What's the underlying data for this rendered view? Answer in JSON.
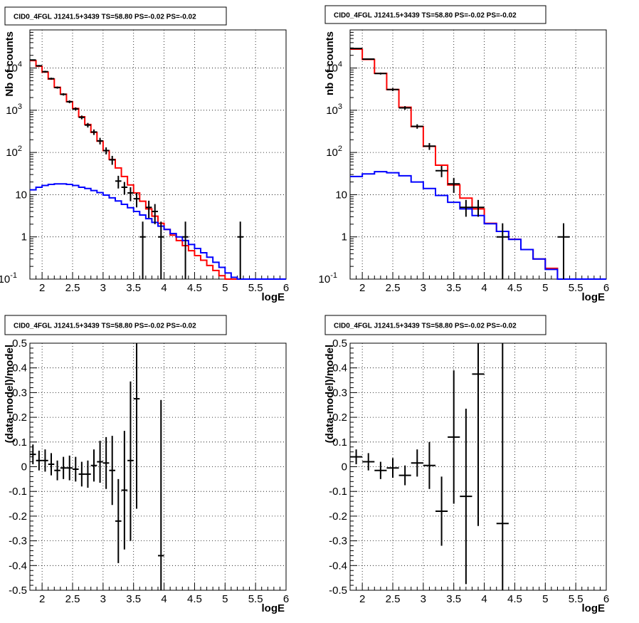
{
  "title": "CID0_4FGL J1241.5+3439 TS=58.80 PS=-0.02 PS=-0.02",
  "colors": {
    "model_total": "#ff0000",
    "model_bkg": "#0000ff",
    "data": "#000000",
    "grid": "#000000"
  },
  "chart_data": [
    {
      "type": "step-histogram",
      "panel": "top-left",
      "title": "CID0_4FGL J1241.5+3439 TS=58.80 PS=-0.02 PS=-0.02",
      "xlabel": "logE",
      "ylabel": "Nb of counts",
      "xlim": [
        1.8,
        6
      ],
      "ylim": [
        0.1,
        80000
      ],
      "yscale": "log",
      "grid": true,
      "xticks": [
        "2",
        "2.5",
        "3",
        "3.5",
        "4",
        "4.5",
        "5",
        "5.5",
        "6"
      ],
      "xtick_values": [
        2,
        2.5,
        3,
        3.5,
        4,
        4.5,
        5,
        5.5,
        6
      ],
      "yticks": [
        "10⁻¹",
        "1",
        "10",
        "10²",
        "10³",
        "10⁴"
      ],
      "ytick_values": [
        0.1,
        1,
        10,
        100,
        1000,
        10000
      ],
      "bin_edges": [
        1.8,
        1.9,
        2.0,
        2.1,
        2.2,
        2.3,
        2.4,
        2.5,
        2.6,
        2.7,
        2.8,
        2.9,
        3.0,
        3.1,
        3.2,
        3.3,
        3.4,
        3.5,
        3.6,
        3.7,
        3.8,
        3.9,
        4.0,
        4.1,
        4.2,
        4.3,
        4.4,
        4.5,
        4.6,
        4.7,
        4.8,
        4.9,
        5.0,
        5.1,
        5.2,
        5.3,
        5.4,
        5.5,
        5.6,
        5.7,
        5.8,
        5.9,
        6.0
      ],
      "series": [
        {
          "values": [
            15000,
            11000,
            8000,
            5500,
            3500,
            2400,
            1600,
            1100,
            700,
            460,
            300,
            185,
            110,
            68,
            43,
            27,
            17,
            11,
            7,
            4.6,
            3.1,
            2.1,
            1.5,
            1.1,
            0.82,
            0.62,
            0.47,
            0.36,
            0.28,
            0.21,
            0.16,
            0.12,
            0.1,
            0.09,
            0.09,
            0.09,
            0.09,
            0.09,
            0.09,
            0.09,
            0.09,
            0.09
          ],
          "color": "#ff0000"
        },
        {
          "values": [
            13,
            15,
            16.5,
            17.5,
            18,
            18,
            17.5,
            16.5,
            15,
            14,
            12.5,
            11.2,
            9.8,
            8.4,
            7.1,
            5.9,
            4.9,
            4.0,
            3.3,
            2.7,
            2.2,
            1.8,
            1.5,
            1.2,
            1.0,
            0.82,
            0.66,
            0.53,
            0.42,
            0.33,
            0.25,
            0.19,
            0.14,
            0.11,
            0.09,
            0.09,
            0.09,
            0.09,
            0.09,
            0.09,
            0.09,
            0.09
          ],
          "color": "#0000ff"
        }
      ],
      "points": [
        {
          "x": 1.85,
          "y": 15500,
          "ylo": 15000,
          "yhi": 16000
        },
        {
          "x": 1.95,
          "y": 11300,
          "ylo": 10800,
          "yhi": 11800
        },
        {
          "x": 2.05,
          "y": 8200,
          "ylo": 7800,
          "yhi": 8600
        },
        {
          "x": 2.15,
          "y": 5600,
          "ylo": 5300,
          "yhi": 5900
        },
        {
          "x": 2.25,
          "y": 3450,
          "ylo": 3250,
          "yhi": 3650
        },
        {
          "x": 2.35,
          "y": 2380,
          "ylo": 2230,
          "yhi": 2530
        },
        {
          "x": 2.45,
          "y": 1590,
          "ylo": 1470,
          "yhi": 1710
        },
        {
          "x": 2.55,
          "y": 1070,
          "ylo": 975,
          "yhi": 1170
        },
        {
          "x": 2.65,
          "y": 680,
          "ylo": 610,
          "yhi": 750
        },
        {
          "x": 2.75,
          "y": 445,
          "ylo": 390,
          "yhi": 500
        },
        {
          "x": 2.85,
          "y": 305,
          "ylo": 260,
          "yhi": 350
        },
        {
          "x": 2.95,
          "y": 188,
          "ylo": 155,
          "yhi": 222
        },
        {
          "x": 3.05,
          "y": 111,
          "ylo": 90,
          "yhi": 132
        },
        {
          "x": 3.15,
          "y": 67,
          "ylo": 51,
          "yhi": 83
        },
        {
          "x": 3.25,
          "y": 21,
          "ylo": 14,
          "yhi": 28
        },
        {
          "x": 3.35,
          "y": 15,
          "ylo": 10,
          "yhi": 20
        },
        {
          "x": 3.45,
          "y": 11,
          "ylo": 7,
          "yhi": 15
        },
        {
          "x": 3.55,
          "y": 8,
          "ylo": 5,
          "yhi": 11
        },
        {
          "x": 3.65,
          "y": 1,
          "ylo": 0.1,
          "yhi": 2.3
        },
        {
          "x": 3.75,
          "y": 5,
          "ylo": 2.8,
          "yhi": 7.2
        },
        {
          "x": 3.85,
          "y": 4,
          "ylo": 2,
          "yhi": 6
        },
        {
          "x": 3.95,
          "y": 1,
          "ylo": 0.1,
          "yhi": 2.3
        },
        {
          "x": 4.35,
          "y": 1,
          "ylo": 0.1,
          "yhi": 2.3
        },
        {
          "x": 5.25,
          "y": 1,
          "ylo": 0.1,
          "yhi": 2.3
        }
      ]
    },
    {
      "type": "step-histogram",
      "panel": "top-right",
      "title": "CID0_4FGL J1241.5+3439 TS=58.80 PS=-0.02 PS=-0.02",
      "xlabel": "logE",
      "ylabel": "nb of counts",
      "xlim": [
        1.8,
        6
      ],
      "ylim": [
        0.1,
        80000
      ],
      "yscale": "log",
      "grid": true,
      "xticks": [
        "2",
        "2.5",
        "3",
        "3.5",
        "4",
        "4.5",
        "5",
        "5.5",
        "6"
      ],
      "xtick_values": [
        2,
        2.5,
        3,
        3.5,
        4,
        4.5,
        5,
        5.5,
        6
      ],
      "yticks": [
        "10⁻¹",
        "1",
        "10",
        "10²",
        "10³",
        "10⁴"
      ],
      "ytick_values": [
        0.1,
        1,
        10,
        100,
        1000,
        10000
      ],
      "bin_edges": [
        1.8,
        2.0,
        2.2,
        2.4,
        2.6,
        2.8,
        3.0,
        3.2,
        3.4,
        3.6,
        3.8,
        4.0,
        4.2,
        4.4,
        4.6,
        4.8,
        5.0,
        5.2,
        5.4,
        5.6,
        5.8,
        6.0
      ],
      "series": [
        {
          "values": [
            28000,
            16000,
            7500,
            3100,
            1180,
            410,
            140,
            50,
            17,
            8.3,
            4.6,
            2.1,
            1.35,
            0.88,
            0.5,
            0.3,
            0.18,
            0.1,
            0.09,
            0.09,
            0.09
          ],
          "color": "#ff0000"
        },
        {
          "values": [
            27,
            31,
            35,
            33,
            28,
            20,
            14,
            9.6,
            6.6,
            4.6,
            3.2,
            2.05,
            1.35,
            0.87,
            0.5,
            0.3,
            0.17,
            0.09,
            0.09,
            0.09,
            0.09
          ],
          "color": "#0000ff"
        }
      ],
      "points": [
        {
          "x": 1.9,
          "y": 29000,
          "ylo": 28200,
          "yhi": 29800
        },
        {
          "x": 2.1,
          "y": 16300,
          "ylo": 15700,
          "yhi": 16900
        },
        {
          "x": 2.3,
          "y": 7400,
          "ylo": 7000,
          "yhi": 7800
        },
        {
          "x": 2.5,
          "y": 3100,
          "ylo": 2850,
          "yhi": 3350
        },
        {
          "x": 2.7,
          "y": 1140,
          "ylo": 1030,
          "yhi": 1250
        },
        {
          "x": 2.9,
          "y": 415,
          "ylo": 365,
          "yhi": 465
        },
        {
          "x": 3.1,
          "y": 141,
          "ylo": 115,
          "yhi": 167
        },
        {
          "x": 3.3,
          "y": 37,
          "ylo": 26,
          "yhi": 48
        },
        {
          "x": 3.5,
          "y": 18,
          "ylo": 11,
          "yhi": 25
        },
        {
          "x": 3.7,
          "y": 5,
          "ylo": 3,
          "yhi": 7.5
        },
        {
          "x": 3.9,
          "y": 5,
          "ylo": 3,
          "yhi": 7.5
        },
        {
          "x": 4.3,
          "y": 1,
          "ylo": 0.1,
          "yhi": 2.1
        },
        {
          "x": 5.3,
          "y": 1,
          "ylo": 0.1,
          "yhi": 2.1
        }
      ]
    },
    {
      "type": "errorbar",
      "panel": "bottom-left",
      "title": "CID0_4FGL J1241.5+3439 TS=58.80 PS=-0.02 PS=-0.02",
      "xlabel": "logE",
      "ylabel": "(data-model)/model",
      "xlim": [
        1.8,
        6
      ],
      "ylim": [
        -0.5,
        0.5
      ],
      "yscale": "linear",
      "grid": true,
      "xticks": [
        "2",
        "2.5",
        "3",
        "3.5",
        "4",
        "4.5",
        "5",
        "5.5",
        "6"
      ],
      "xtick_values": [
        2,
        2.5,
        3,
        3.5,
        4,
        4.5,
        5,
        5.5,
        6
      ],
      "yticks": [
        "-0.5",
        "-0.4",
        "-0.3",
        "-0.2",
        "-0.1",
        "0",
        "0.1",
        "0.2",
        "0.3",
        "0.4",
        "0.5"
      ],
      "ytick_values": [
        -0.5,
        -0.4,
        -0.3,
        -0.2,
        -0.1,
        0,
        0.1,
        0.2,
        0.3,
        0.4,
        0.5
      ],
      "xerr": 0.05,
      "points": [
        {
          "x": 1.85,
          "y": 0.05,
          "ylo": 0.01,
          "yhi": 0.09
        },
        {
          "x": 1.95,
          "y": 0.025,
          "ylo": -0.015,
          "yhi": 0.065
        },
        {
          "x": 2.05,
          "y": 0.025,
          "ylo": -0.02,
          "yhi": 0.07
        },
        {
          "x": 2.15,
          "y": 0.01,
          "ylo": -0.035,
          "yhi": 0.055
        },
        {
          "x": 2.25,
          "y": -0.015,
          "ylo": -0.055,
          "yhi": 0.025
        },
        {
          "x": 2.35,
          "y": -0.005,
          "ylo": -0.05,
          "yhi": 0.04
        },
        {
          "x": 2.45,
          "y": -0.005,
          "ylo": -0.055,
          "yhi": 0.045
        },
        {
          "x": 2.55,
          "y": -0.01,
          "ylo": -0.06,
          "yhi": 0.04
        },
        {
          "x": 2.65,
          "y": -0.03,
          "ylo": -0.08,
          "yhi": 0.02
        },
        {
          "x": 2.75,
          "y": -0.03,
          "ylo": -0.085,
          "yhi": 0.025
        },
        {
          "x": 2.85,
          "y": 0.005,
          "ylo": -0.06,
          "yhi": 0.07
        },
        {
          "x": 2.95,
          "y": 0.02,
          "ylo": -0.065,
          "yhi": 0.105
        },
        {
          "x": 3.05,
          "y": 0.015,
          "ylo": -0.09,
          "yhi": 0.12
        },
        {
          "x": 3.15,
          "y": -0.015,
          "ylo": -0.155,
          "yhi": 0.125
        },
        {
          "x": 3.25,
          "y": -0.22,
          "ylo": -0.39,
          "yhi": -0.05
        },
        {
          "x": 3.35,
          "y": -0.095,
          "ylo": -0.335,
          "yhi": 0.145
        },
        {
          "x": 3.45,
          "y": 0.025,
          "ylo": -0.3,
          "yhi": 0.345
        },
        {
          "x": 3.55,
          "y": 0.275,
          "ylo": -0.17,
          "yhi": 0.5
        },
        {
          "x": 3.95,
          "y": -0.36,
          "ylo": -0.5,
          "yhi": 0.27
        }
      ]
    },
    {
      "type": "errorbar",
      "panel": "bottom-right",
      "title": "CID0_4FGL J1241.5+3439 TS=58.80 PS=-0.02 PS=-0.02",
      "xlabel": "logE",
      "ylabel": "(data-model)/model",
      "xlim": [
        1.8,
        6
      ],
      "ylim": [
        -0.5,
        0.5
      ],
      "yscale": "linear",
      "grid": true,
      "xticks": [
        "2",
        "2.5",
        "3",
        "3.5",
        "4",
        "4.5",
        "5",
        "5.5",
        "6"
      ],
      "xtick_values": [
        2,
        2.5,
        3,
        3.5,
        4,
        4.5,
        5,
        5.5,
        6
      ],
      "yticks": [
        "-0.5",
        "-0.4",
        "-0.3",
        "-0.2",
        "-0.1",
        "0",
        "0.1",
        "0.2",
        "0.3",
        "0.4",
        "0.5"
      ],
      "ytick_values": [
        -0.5,
        -0.4,
        -0.3,
        -0.2,
        -0.1,
        0,
        0.1,
        0.2,
        0.3,
        0.4,
        0.5
      ],
      "xerr": 0.1,
      "points": [
        {
          "x": 1.9,
          "y": 0.04,
          "ylo": 0.01,
          "yhi": 0.07
        },
        {
          "x": 2.1,
          "y": 0.02,
          "ylo": -0.015,
          "yhi": 0.055
        },
        {
          "x": 2.3,
          "y": -0.015,
          "ylo": -0.05,
          "yhi": 0.02
        },
        {
          "x": 2.5,
          "y": -0.005,
          "ylo": -0.045,
          "yhi": 0.035
        },
        {
          "x": 2.7,
          "y": -0.035,
          "ylo": -0.075,
          "yhi": 0.005
        },
        {
          "x": 2.9,
          "y": 0.015,
          "ylo": -0.04,
          "yhi": 0.07
        },
        {
          "x": 3.1,
          "y": 0.005,
          "ylo": -0.09,
          "yhi": 0.1
        },
        {
          "x": 3.3,
          "y": -0.18,
          "ylo": -0.32,
          "yhi": -0.04
        },
        {
          "x": 3.5,
          "y": 0.12,
          "ylo": -0.15,
          "yhi": 0.39
        },
        {
          "x": 3.7,
          "y": -0.12,
          "ylo": -0.475,
          "yhi": 0.235
        },
        {
          "x": 3.9,
          "y": 0.375,
          "ylo": -0.24,
          "yhi": 0.5
        },
        {
          "x": 4.3,
          "y": -0.23,
          "ylo": -0.5,
          "yhi": 0.5
        }
      ]
    }
  ]
}
